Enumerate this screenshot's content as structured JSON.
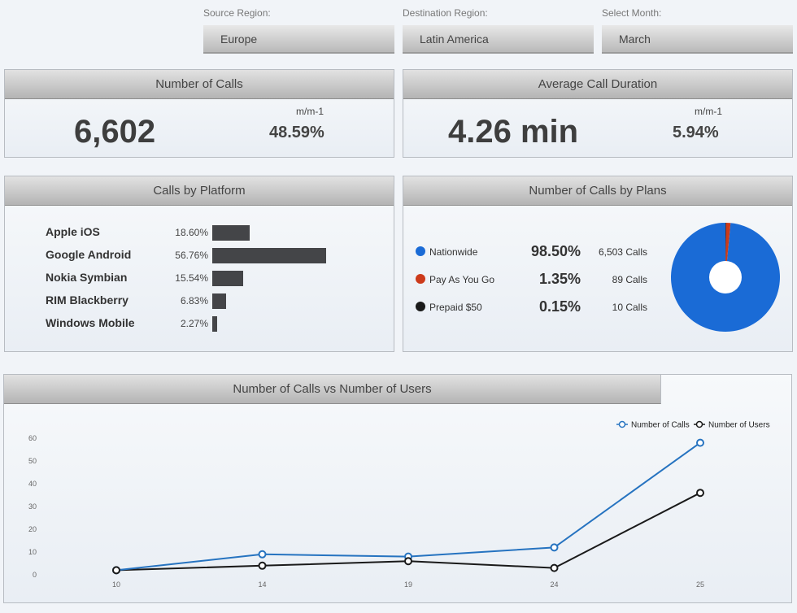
{
  "filters": {
    "source": {
      "label": "Source Region:",
      "value": "Europe"
    },
    "destination": {
      "label": "Destination Region:",
      "value": "Latin America"
    },
    "month": {
      "label": "Select Month:",
      "value": "March"
    }
  },
  "kpi_calls": {
    "title": "Number of Calls",
    "value": "6,602",
    "change_label": "m/m-1",
    "change": "48.59%"
  },
  "kpi_duration": {
    "title": "Average Call Duration",
    "value": "4.26 min",
    "change_label": "m/m-1",
    "change": "5.94%"
  },
  "platforms": {
    "title": "Calls by Platform",
    "items": [
      {
        "name": "Apple iOS",
        "pct_label": "18.60%",
        "pct": 18.6
      },
      {
        "name": "Google Android",
        "pct_label": "56.76%",
        "pct": 56.76
      },
      {
        "name": "Nokia Symbian",
        "pct_label": "15.54%",
        "pct": 15.54
      },
      {
        "name": "RIM Blackberry",
        "pct_label": "6.83%",
        "pct": 6.83
      },
      {
        "name": "Windows Mobile",
        "pct_label": "2.27%",
        "pct": 2.27
      }
    ]
  },
  "plans": {
    "title": "Number of Calls by Plans",
    "items": [
      {
        "name": "Nationwide",
        "pct": "98.50%",
        "calls": "6,503 Calls",
        "value": 98.5,
        "color": "#1a6bd6"
      },
      {
        "name": "Pay As You Go",
        "pct": "1.35%",
        "calls": "89 Calls",
        "value": 1.35,
        "color": "#cc3a1a"
      },
      {
        "name": "Prepaid $50",
        "pct": "0.15%",
        "calls": "10 Calls",
        "value": 0.15,
        "color": "#1a1a1a"
      }
    ]
  },
  "chart_data": {
    "type": "line",
    "title": "Number of Calls vs Number of Users",
    "x": [
      10,
      14,
      19,
      24,
      25
    ],
    "x_tick_labels": [
      "10",
      "14",
      "19",
      "24",
      "25"
    ],
    "ylim": [
      0,
      60
    ],
    "y_ticks": [
      0,
      10,
      20,
      30,
      40,
      50,
      60
    ],
    "legend_position": "top-right",
    "grid": false,
    "series": [
      {
        "name": "Number of Calls",
        "color": "#2673c0",
        "values": [
          2,
          9,
          8,
          12,
          58
        ]
      },
      {
        "name": "Number of Users",
        "color": "#1a1a1a",
        "values": [
          2,
          4,
          6,
          3,
          36
        ]
      }
    ]
  }
}
